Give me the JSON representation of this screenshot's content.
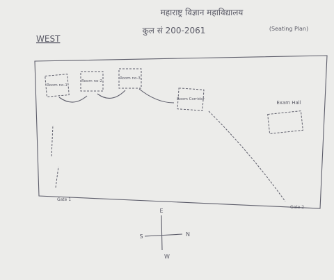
{
  "header": {
    "title": "महाराष्ट्र विज्ञान महाविद्यालय",
    "subtitle": "कुल सं 200-2061",
    "note": "(Seating Plan)"
  },
  "side_label": "WEST",
  "rooms": [
    {
      "label": "Room no-1"
    },
    {
      "label": "Room no-2"
    },
    {
      "label": "Room no-3"
    },
    {
      "label": "Room Corridor"
    },
    {
      "label": "Exam Hall"
    }
  ],
  "markers": {
    "entry": "Gate 1",
    "exit": "Gate 2"
  },
  "compass": {
    "north": "N",
    "east": "E",
    "south": "S",
    "west": "W"
  }
}
